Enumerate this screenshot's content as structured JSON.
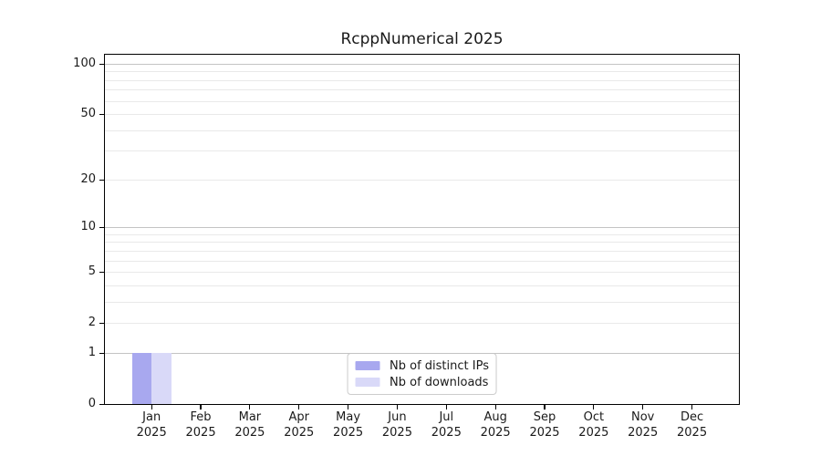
{
  "chart_data": {
    "type": "bar",
    "title": "RcppNumerical 2025",
    "xlabel": "",
    "ylabel": "",
    "categories": [
      "Jan 2025",
      "Feb 2025",
      "Mar 2025",
      "Apr 2025",
      "May 2025",
      "Jun 2025",
      "Jul 2025",
      "Aug 2025",
      "Sep 2025",
      "Oct 2025",
      "Nov 2025",
      "Dec 2025"
    ],
    "month_labels": [
      "Jan",
      "Feb",
      "Mar",
      "Apr",
      "May",
      "Jun",
      "Jul",
      "Aug",
      "Sep",
      "Oct",
      "Nov",
      "Dec"
    ],
    "year_label": "2025",
    "series": [
      {
        "name": "Nb of distinct IPs",
        "color": "#a8a8ef",
        "values": [
          1,
          0,
          0,
          0,
          0,
          0,
          0,
          0,
          0,
          0,
          0,
          0
        ]
      },
      {
        "name": "Nb of downloads",
        "color": "#d9d9f8",
        "values": [
          1,
          0,
          0,
          0,
          0,
          0,
          0,
          0,
          0,
          0,
          0,
          0
        ]
      }
    ],
    "y_scale": "log1p",
    "ylim": [
      0,
      115
    ],
    "y_tick_values": [
      0,
      1,
      2,
      5,
      10,
      20,
      50,
      100
    ],
    "y_tick_labels": [
      "0",
      "1",
      "2",
      "5",
      "10",
      "20",
      "50",
      "100"
    ],
    "y_decade_gridlines": [
      1,
      10,
      100
    ],
    "y_minor_gridlines": [
      2,
      3,
      4,
      5,
      6,
      7,
      8,
      9,
      20,
      30,
      40,
      50,
      60,
      70,
      80,
      90
    ],
    "grid": true,
    "legend": {
      "position": "lower center"
    }
  },
  "colors": {
    "bar_distinct_ips": "#a8a8ef",
    "bar_downloads": "#d9d9f8",
    "grid_decade": "#c4c4c4",
    "grid_minor": "#e9e9e9",
    "axis_frame": "#000000",
    "text": "#1a1a1a",
    "legend_border": "#cccccc",
    "background": "#ffffff"
  }
}
